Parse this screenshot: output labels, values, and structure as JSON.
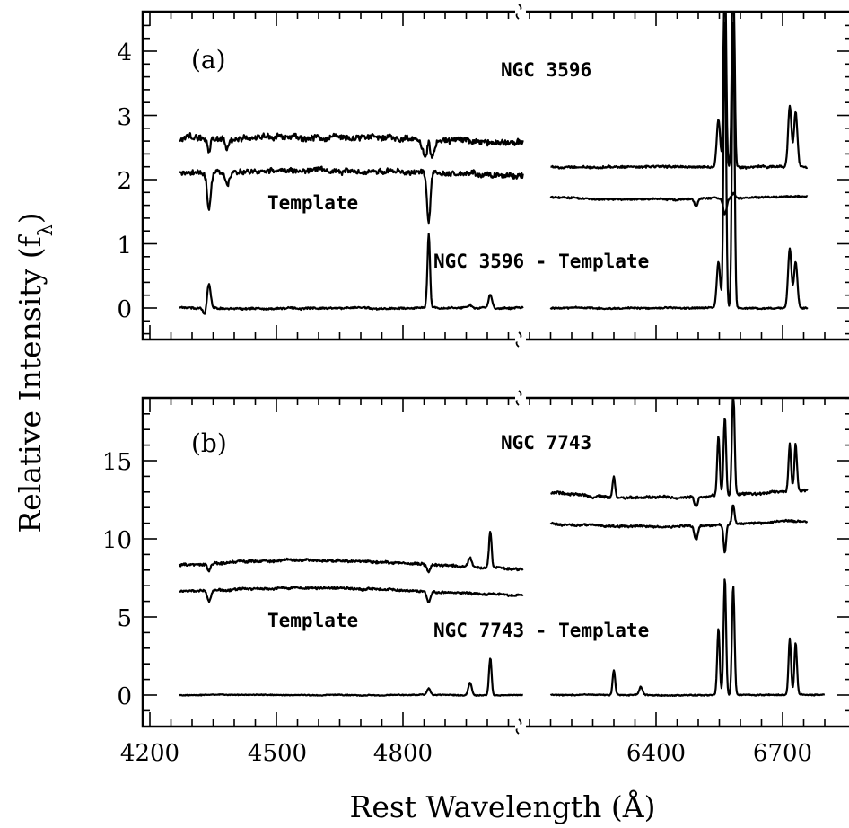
{
  "chart_data": {
    "type": "line",
    "xlabel": "Rest Wavelength (Å)",
    "ylabel": "Relative Intensity (f_λ)",
    "x_tick_labels": [
      "4200",
      "4500",
      "4800",
      "6400",
      "6700"
    ],
    "x_axis_break": "Å",
    "x_segments": [
      [
        4200,
        5120
      ],
      [
        6150,
        6800
      ]
    ],
    "panels": [
      {
        "panel_label": "(a)",
        "ylim": [
          -0.5,
          4.5
        ],
        "ytick_labels": [
          "0",
          "1",
          "2",
          "3",
          "4"
        ],
        "annotations": [
          "NGC 3596",
          "Template",
          "NGC 3596 - Template"
        ],
        "series": [
          {
            "name": "NGC 3596",
            "segments": [
              {
                "x_range": [
                  4270,
                  5085
                ],
                "baseline": 2.62,
                "tilt": 0.1,
                "noise": 0.08,
                "features": [
                  {
                    "x": 4340,
                    "depth": -0.22
                  },
                  {
                    "x": 4383,
                    "depth": -0.15
                  },
                  {
                    "x": 4861,
                    "depth": 0.38
                  },
                  {
                    "x": 4861,
                    "depth": -0.45,
                    "w": 10
                  }
                ]
              },
              {
                "x_range": [
                  6150,
                  6760
                ],
                "baseline": 2.2,
                "tilt": 0.0,
                "noise": 0.03,
                "features": [
                  {
                    "x": 6548,
                    "depth": 0.75
                  },
                  {
                    "x": 6563,
                    "depth": 3.5
                  },
                  {
                    "x": 6583,
                    "depth": 3.5
                  },
                  {
                    "x": 6717,
                    "depth": 0.95
                  },
                  {
                    "x": 6731,
                    "depth": 0.85
                  }
                ]
              }
            ]
          },
          {
            "name": "Template",
            "segments": [
              {
                "x_range": [
                  4270,
                  5085
                ],
                "baseline": 2.1,
                "tilt": 0.1,
                "noise": 0.07,
                "features": [
                  {
                    "x": 4340,
                    "depth": -0.55
                  },
                  {
                    "x": 4383,
                    "depth": -0.2
                  },
                  {
                    "x": 4861,
                    "depth": -0.75
                  }
                ]
              },
              {
                "x_range": [
                  6150,
                  6760
                ],
                "baseline": 1.72,
                "tilt": -0.05,
                "noise": 0.025,
                "features": [
                  {
                    "x": 6495,
                    "depth": -0.12
                  },
                  {
                    "x": 6563,
                    "depth": -0.25
                  },
                  {
                    "x": 6583,
                    "depth": 0.08
                  }
                ]
              }
            ]
          },
          {
            "name": "NGC 3596 - Template",
            "segments": [
              {
                "x_range": [
                  4270,
                  5085
                ],
                "baseline": 0.0,
                "tilt": 0.0,
                "noise": 0.025,
                "features": [
                  {
                    "x": 4340,
                    "depth": 0.38
                  },
                  {
                    "x": 4330,
                    "depth": -0.1
                  },
                  {
                    "x": 4861,
                    "depth": 1.15
                  },
                  {
                    "x": 4959,
                    "depth": 0.05
                  },
                  {
                    "x": 5007,
                    "depth": 0.22
                  }
                ]
              },
              {
                "x_range": [
                  6150,
                  6760
                ],
                "baseline": 0.0,
                "tilt": 0.0,
                "noise": 0.02,
                "features": [
                  {
                    "x": 6548,
                    "depth": 0.72
                  },
                  {
                    "x": 6563,
                    "depth": 4.5
                  },
                  {
                    "x": 6583,
                    "depth": 4.5
                  },
                  {
                    "x": 6717,
                    "depth": 0.92
                  },
                  {
                    "x": 6731,
                    "depth": 0.72
                  }
                ]
              }
            ]
          }
        ]
      },
      {
        "panel_label": "(b)",
        "ylim": [
          -2,
          19
        ],
        "ytick_labels": [
          "0",
          "5",
          "10",
          "15"
        ],
        "annotations": [
          "NGC 7743",
          "Template",
          "NGC 7743 - Template"
        ],
        "series": [
          {
            "name": "NGC 7743",
            "segments": [
              {
                "x_range": [
                  4270,
                  5085
                ],
                "baseline": 8.3,
                "tilt": 0.6,
                "noise": 0.15,
                "features": [
                  {
                    "x": 4340,
                    "depth": -0.5
                  },
                  {
                    "x": 4861,
                    "depth": -0.5
                  },
                  {
                    "x": 4959,
                    "depth": 0.6
                  },
                  {
                    "x": 5007,
                    "depth": 2.3
                  }
                ]
              },
              {
                "x_range": [
                  6150,
                  6760
                ],
                "baseline": 12.9,
                "tilt": -0.5,
                "noise": 0.15,
                "features": [
                  {
                    "x": 6300,
                    "depth": 1.3
                  },
                  {
                    "x": 6495,
                    "depth": -0.6
                  },
                  {
                    "x": 6548,
                    "depth": 3.8
                  },
                  {
                    "x": 6563,
                    "depth": 5.0
                  },
                  {
                    "x": 6583,
                    "depth": 7.0
                  },
                  {
                    "x": 6717,
                    "depth": 3.0
                  },
                  {
                    "x": 6731,
                    "depth": 3.0
                  }
                ]
              }
            ]
          },
          {
            "name": "Template",
            "segments": [
              {
                "x_range": [
                  4270,
                  5085
                ],
                "baseline": 6.6,
                "tilt": 0.5,
                "noise": 0.12,
                "features": [
                  {
                    "x": 4340,
                    "depth": -0.7
                  },
                  {
                    "x": 4861,
                    "depth": -0.7
                  }
                ]
              },
              {
                "x_range": [
                  6150,
                  6760
                ],
                "baseline": 11.0,
                "tilt": -0.4,
                "noise": 0.12,
                "features": [
                  {
                    "x": 6495,
                    "depth": -0.9
                  },
                  {
                    "x": 6563,
                    "depth": -1.8
                  },
                  {
                    "x": 6583,
                    "depth": 1.2
                  }
                ]
              }
            ]
          },
          {
            "name": "NGC 7743 - Template",
            "segments": [
              {
                "x_range": [
                  4270,
                  5085
                ],
                "baseline": 0.0,
                "tilt": 0.0,
                "noise": 0.05,
                "features": [
                  {
                    "x": 4861,
                    "depth": 0.4
                  },
                  {
                    "x": 4959,
                    "depth": 0.8
                  },
                  {
                    "x": 5007,
                    "depth": 2.4
                  }
                ]
              },
              {
                "x_range": [
                  6150,
                  6800
                ],
                "baseline": 0.0,
                "tilt": 0.0,
                "noise": 0.06,
                "features": [
                  {
                    "x": 6300,
                    "depth": 1.6
                  },
                  {
                    "x": 6364,
                    "depth": 0.5
                  },
                  {
                    "x": 6548,
                    "depth": 4.3
                  },
                  {
                    "x": 6563,
                    "depth": 7.5
                  },
                  {
                    "x": 6583,
                    "depth": 7.0
                  },
                  {
                    "x": 6717,
                    "depth": 3.6
                  },
                  {
                    "x": 6731,
                    "depth": 3.3
                  }
                ]
              }
            ]
          }
        ]
      }
    ]
  }
}
